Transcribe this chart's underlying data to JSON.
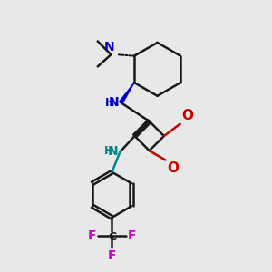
{
  "bg_color": "#e8e8e8",
  "bond_color": "#1a1a1a",
  "N_blue": "#0000cc",
  "N_teal": "#008888",
  "O_color": "#cc0000",
  "F_color": "#cc00cc",
  "figsize": [
    3.0,
    3.0
  ],
  "dpi": 100,
  "xlim": [
    0,
    10
  ],
  "ylim": [
    0,
    10
  ]
}
